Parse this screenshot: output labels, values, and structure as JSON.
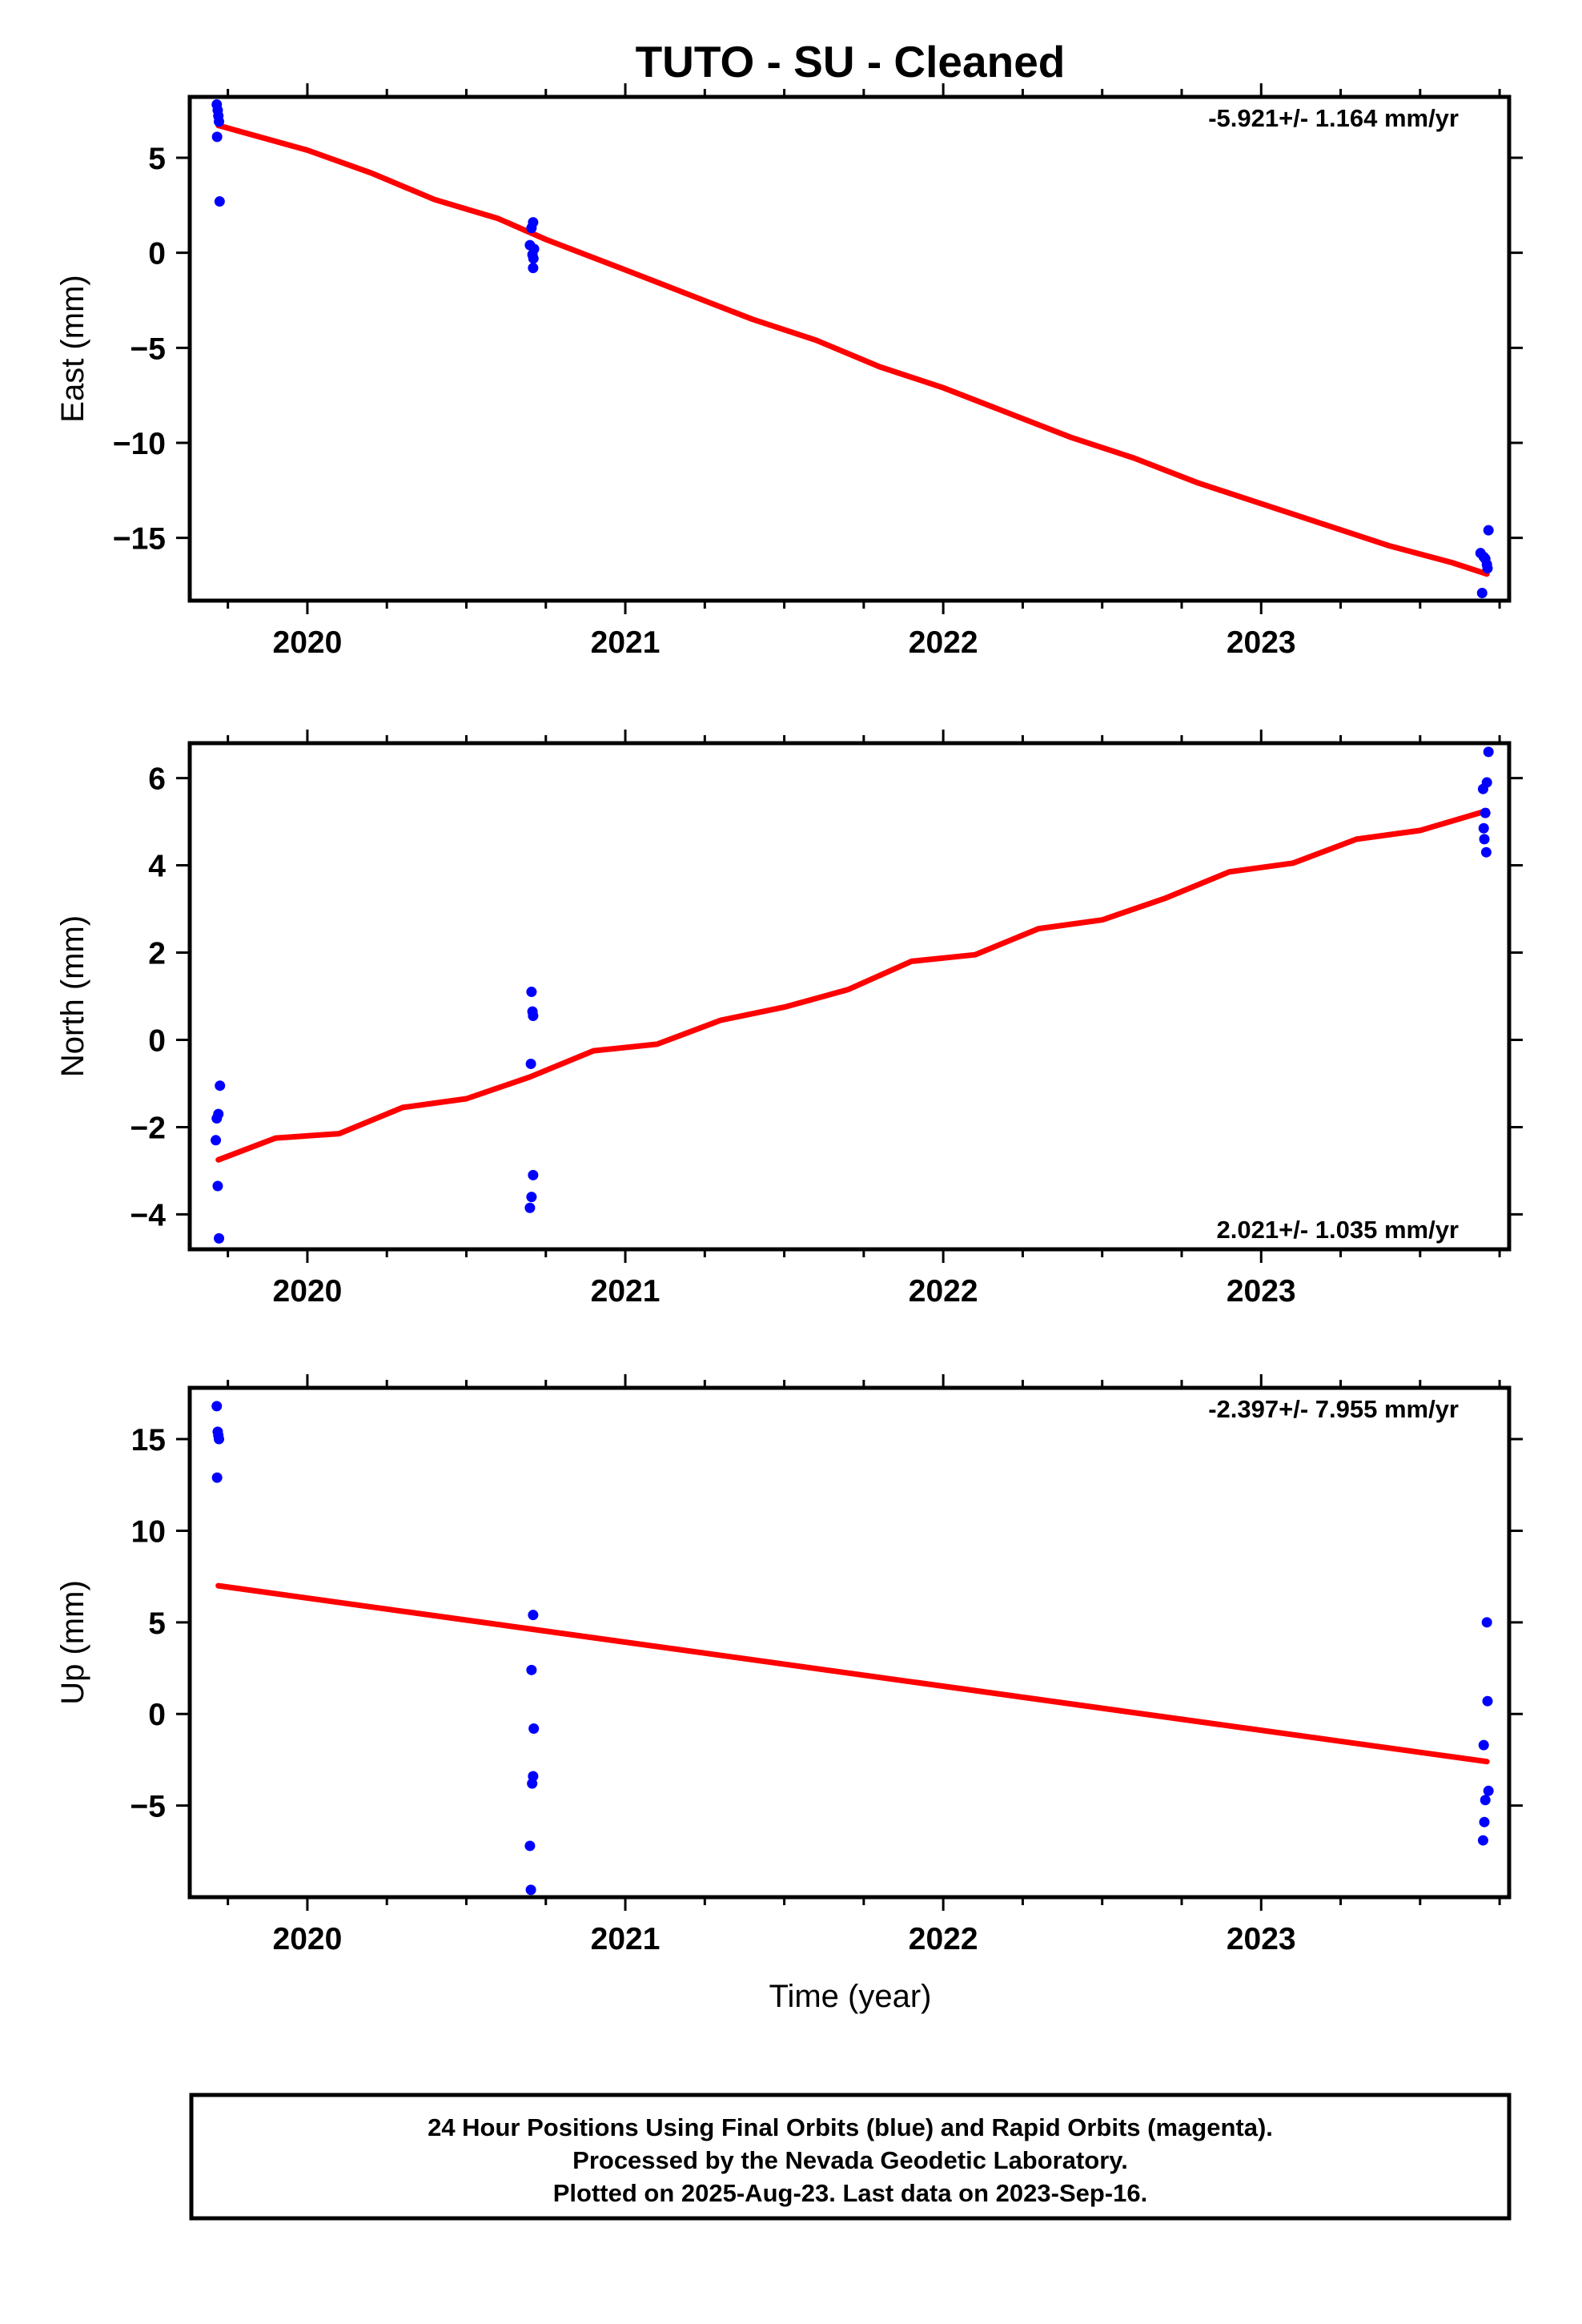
{
  "title": "TUTO  - SU - Cleaned",
  "xlabel": "Time (year)",
  "footer": {
    "line1": "24 Hour Positions Using Final Orbits (blue) and Rapid Orbits (magenta).",
    "line2": "Processed by the Nevada Geodetic Laboratory.",
    "line3": "Plotted on 2025-Aug-23. Last data on 2023-Sep-16."
  },
  "colors": {
    "data_points": "#0000ff",
    "trend_line": "#ff0000",
    "axes": "#000000"
  },
  "chart_data": [
    {
      "type": "scatter",
      "component": "east",
      "ylabel": "East (mm)",
      "rate_label": "-5.921+/- 1.164 mm/yr",
      "rate_label_position": "top-right",
      "xlim": [
        2019.63,
        2023.78
      ],
      "ylim": [
        -18.3,
        8.2
      ],
      "x_ticks": [
        2020,
        2021,
        2022,
        2023
      ],
      "y_ticks": [
        -15,
        -10,
        -5,
        0,
        5
      ],
      "grid": false,
      "points": [
        {
          "x": 2019.715,
          "y": 7.8
        },
        {
          "x": 2019.718,
          "y": 7.5
        },
        {
          "x": 2019.72,
          "y": 7.2
        },
        {
          "x": 2019.722,
          "y": 6.9
        },
        {
          "x": 2019.716,
          "y": 6.1
        },
        {
          "x": 2019.724,
          "y": 2.7
        },
        {
          "x": 2020.71,
          "y": 1.6
        },
        {
          "x": 2020.705,
          "y": 1.3
        },
        {
          "x": 2020.7,
          "y": 0.4
        },
        {
          "x": 2020.713,
          "y": 0.2
        },
        {
          "x": 2020.708,
          "y": -0.1
        },
        {
          "x": 2020.711,
          "y": -0.3
        },
        {
          "x": 2020.71,
          "y": -0.8
        },
        {
          "x": 2023.69,
          "y": -15.8
        },
        {
          "x": 2023.7,
          "y": -16.0
        },
        {
          "x": 2023.705,
          "y": -16.1
        },
        {
          "x": 2023.71,
          "y": -16.4
        },
        {
          "x": 2023.712,
          "y": -16.6
        },
        {
          "x": 2023.715,
          "y": -14.6
        },
        {
          "x": 2023.695,
          "y": -17.9
        }
      ],
      "trend": {
        "x": [
          2019.72,
          2020.0,
          2020.2,
          2020.4,
          2020.6,
          2020.75,
          2021.0,
          2021.2,
          2021.4,
          2021.6,
          2021.8,
          2022.0,
          2022.2,
          2022.4,
          2022.6,
          2022.8,
          2023.0,
          2023.2,
          2023.4,
          2023.6,
          2023.71
        ],
        "y": [
          6.7,
          5.4,
          4.2,
          2.8,
          1.8,
          0.7,
          -0.9,
          -2.2,
          -3.5,
          -4.6,
          -6.0,
          -7.1,
          -8.4,
          -9.7,
          -10.8,
          -12.1,
          -13.2,
          -14.3,
          -15.4,
          -16.3,
          -16.9
        ]
      }
    },
    {
      "type": "scatter",
      "component": "north",
      "ylabel": "North (mm)",
      "rate_label": "2.021+/- 1.035 mm/yr",
      "rate_label_position": "bottom-right",
      "xlim": [
        2019.63,
        2023.78
      ],
      "ylim": [
        -4.8,
        6.8
      ],
      "x_ticks": [
        2020,
        2021,
        2022,
        2023
      ],
      "y_ticks": [
        -4,
        -2,
        0,
        2,
        4,
        6
      ],
      "grid": false,
      "points": [
        {
          "x": 2019.725,
          "y": -1.05
        },
        {
          "x": 2019.72,
          "y": -1.7
        },
        {
          "x": 2019.715,
          "y": -1.8
        },
        {
          "x": 2019.712,
          "y": -2.3
        },
        {
          "x": 2019.718,
          "y": -3.35
        },
        {
          "x": 2019.722,
          "y": -4.55
        },
        {
          "x": 2020.705,
          "y": 1.1
        },
        {
          "x": 2020.708,
          "y": 0.65
        },
        {
          "x": 2020.71,
          "y": 0.55
        },
        {
          "x": 2020.703,
          "y": -0.55
        },
        {
          "x": 2020.71,
          "y": -3.1
        },
        {
          "x": 2020.705,
          "y": -3.6
        },
        {
          "x": 2020.7,
          "y": -3.85
        },
        {
          "x": 2023.715,
          "y": 6.6
        },
        {
          "x": 2023.71,
          "y": 5.9
        },
        {
          "x": 2023.698,
          "y": 5.75
        },
        {
          "x": 2023.705,
          "y": 5.2
        },
        {
          "x": 2023.7,
          "y": 4.85
        },
        {
          "x": 2023.702,
          "y": 4.6
        },
        {
          "x": 2023.708,
          "y": 4.3
        }
      ],
      "trend": {
        "x": [
          2019.72,
          2019.9,
          2020.1,
          2020.3,
          2020.5,
          2020.7,
          2020.9,
          2021.1,
          2021.3,
          2021.5,
          2021.7,
          2021.9,
          2022.1,
          2022.3,
          2022.5,
          2022.7,
          2022.9,
          2023.1,
          2023.3,
          2023.5,
          2023.71
        ],
        "y": [
          -2.75,
          -2.25,
          -2.15,
          -1.55,
          -1.35,
          -0.85,
          -0.25,
          -0.1,
          0.45,
          0.75,
          1.15,
          1.8,
          1.95,
          2.55,
          2.75,
          3.25,
          3.85,
          4.05,
          4.6,
          4.8,
          5.25
        ]
      }
    },
    {
      "type": "scatter",
      "component": "up",
      "ylabel": "Up (mm)",
      "rate_label": "-2.397+/- 7.955 mm/yr",
      "rate_label_position": "top-right",
      "xlim": [
        2019.63,
        2023.78
      ],
      "ylim": [
        -10.0,
        17.8
      ],
      "x_ticks": [
        2020,
        2021,
        2022,
        2023
      ],
      "y_ticks": [
        -5,
        0,
        5,
        10,
        15
      ],
      "grid": false,
      "points": [
        {
          "x": 2019.715,
          "y": 16.8
        },
        {
          "x": 2019.718,
          "y": 15.4
        },
        {
          "x": 2019.72,
          "y": 15.2
        },
        {
          "x": 2019.722,
          "y": 15.0
        },
        {
          "x": 2019.716,
          "y": 12.9
        },
        {
          "x": 2020.71,
          "y": 5.4
        },
        {
          "x": 2020.705,
          "y": 2.4
        },
        {
          "x": 2020.712,
          "y": -0.8
        },
        {
          "x": 2020.71,
          "y": -3.4
        },
        {
          "x": 2020.707,
          "y": -3.8
        },
        {
          "x": 2020.7,
          "y": -7.2
        },
        {
          "x": 2020.703,
          "y": -9.6
        },
        {
          "x": 2023.71,
          "y": 5.0
        },
        {
          "x": 2023.712,
          "y": 0.7
        },
        {
          "x": 2023.7,
          "y": -1.7
        },
        {
          "x": 2023.715,
          "y": -4.2
        },
        {
          "x": 2023.705,
          "y": -4.7
        },
        {
          "x": 2023.702,
          "y": -5.9
        },
        {
          "x": 2023.698,
          "y": -6.9
        }
      ],
      "trend": {
        "x": [
          2019.72,
          2023.71
        ],
        "y": [
          7.0,
          -2.6
        ]
      }
    }
  ]
}
